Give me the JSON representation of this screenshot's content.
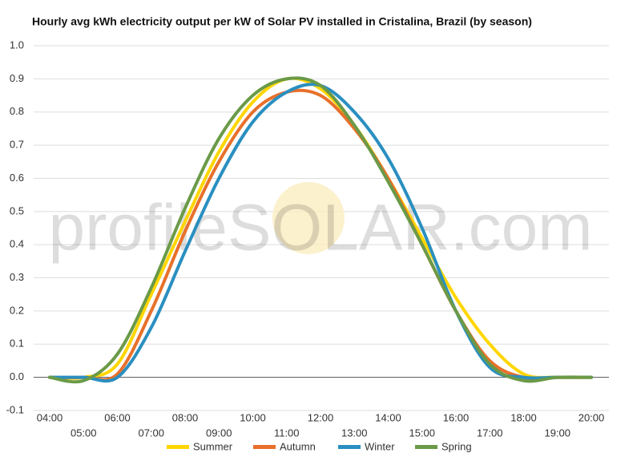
{
  "chart_data": {
    "type": "line",
    "title": "Hourly avg kWh electricity output per kW of Solar PV installed in Cristalina, Brazil (by season)",
    "watermark": "profileSOLAR.com",
    "categories": [
      "04:00",
      "05:00",
      "06:00",
      "07:00",
      "08:00",
      "09:00",
      "10:00",
      "11:00",
      "12:00",
      "13:00",
      "14:00",
      "15:00",
      "16:00",
      "17:00",
      "18:00",
      "19:00",
      "20:00"
    ],
    "series": [
      {
        "name": "Summer",
        "color": "#ffd600",
        "values": [
          0,
          0,
          0.04,
          0.25,
          0.47,
          0.68,
          0.83,
          0.9,
          0.87,
          0.76,
          0.6,
          0.42,
          0.24,
          0.1,
          0.01,
          0,
          0
        ]
      },
      {
        "name": "Autumn",
        "color": "#e8702a",
        "values": [
          0,
          0,
          0.01,
          0.2,
          0.44,
          0.65,
          0.8,
          0.86,
          0.85,
          0.75,
          0.6,
          0.4,
          0.2,
          0.05,
          0,
          0,
          0
        ]
      },
      {
        "name": "Winter",
        "color": "#2a8fc0",
        "values": [
          0,
          0,
          0,
          0.15,
          0.38,
          0.6,
          0.77,
          0.86,
          0.88,
          0.8,
          0.66,
          0.45,
          0.2,
          0.03,
          0,
          0,
          0
        ]
      },
      {
        "name": "Spring",
        "color": "#6a9a48",
        "values": [
          0,
          -0.01,
          0.07,
          0.27,
          0.51,
          0.72,
          0.85,
          0.9,
          0.88,
          0.76,
          0.59,
          0.4,
          0.2,
          0.04,
          -0.01,
          0,
          0
        ]
      }
    ],
    "ylim": [
      -0.1,
      1.0
    ],
    "yticks": [
      {
        "value": -0.1,
        "label": "-0.1"
      },
      {
        "value": 0,
        "label": "0.0"
      },
      0.1,
      0.2,
      0.3,
      0.4,
      0.5,
      0.6,
      0.7,
      0.8,
      0.9,
      {
        "value": 1,
        "label": "1.0"
      }
    ],
    "grid": true
  }
}
